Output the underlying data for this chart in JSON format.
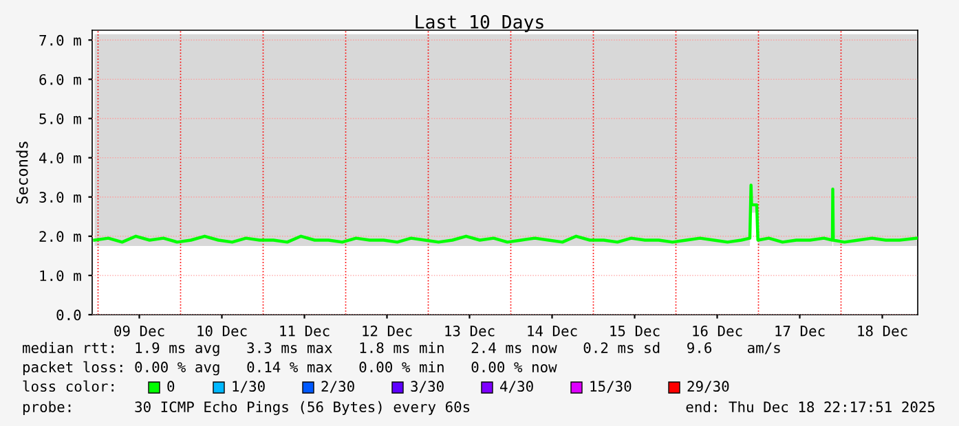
{
  "chart_data": {
    "type": "line",
    "title": "Last 10 Days",
    "ylabel": "Seconds",
    "xlim": [
      "2025-12-08T22:18",
      "2025-12-18T22:18"
    ],
    "xticks": [
      {
        "value": "2025-12-09T12:00",
        "label": "09 Dec"
      },
      {
        "value": "2025-12-10T12:00",
        "label": "10 Dec"
      },
      {
        "value": "2025-12-11T12:00",
        "label": "11 Dec"
      },
      {
        "value": "2025-12-12T12:00",
        "label": "12 Dec"
      },
      {
        "value": "2025-12-13T12:00",
        "label": "13 Dec"
      },
      {
        "value": "2025-12-14T12:00",
        "label": "14 Dec"
      },
      {
        "value": "2025-12-15T12:00",
        "label": "15 Dec"
      },
      {
        "value": "2025-12-16T12:00",
        "label": "16 Dec"
      },
      {
        "value": "2025-12-17T12:00",
        "label": "17 Dec"
      },
      {
        "value": "2025-12-18T12:00",
        "label": "18 Dec"
      }
    ],
    "ylim": [
      0,
      7.25
    ],
    "yticks": [
      {
        "value": 0,
        "label": "0.0"
      },
      {
        "value": 1,
        "label": "1.0 m"
      },
      {
        "value": 2,
        "label": "2.0 m"
      },
      {
        "value": 3,
        "label": "3.0 m"
      },
      {
        "value": 4,
        "label": "4.0 m"
      },
      {
        "value": 5,
        "label": "5.0 m"
      },
      {
        "value": 6,
        "label": "6.0 m"
      },
      {
        "value": 7,
        "label": "7.0 m"
      }
    ],
    "grid": "y",
    "legend": "bottom",
    "marker": "none",
    "line_style": "solid",
    "ref_lines": [
      {
        "axis": "x",
        "value": "2025-12-09T00:00",
        "color": "#ff0000",
        "line_style": "dotted"
      },
      {
        "axis": "x",
        "value": "2025-12-10T00:00",
        "color": "#ff0000",
        "line_style": "dotted"
      },
      {
        "axis": "x",
        "value": "2025-12-11T00:00",
        "color": "#ff0000",
        "line_style": "dotted"
      },
      {
        "axis": "x",
        "value": "2025-12-12T00:00",
        "color": "#ff0000",
        "line_style": "dotted"
      },
      {
        "axis": "x",
        "value": "2025-12-13T00:00",
        "color": "#ff0000",
        "line_style": "dotted"
      },
      {
        "axis": "x",
        "value": "2025-12-14T00:00",
        "color": "#ff0000",
        "line_style": "dotted"
      },
      {
        "axis": "x",
        "value": "2025-12-15T00:00",
        "color": "#ff0000",
        "line_style": "dotted"
      },
      {
        "axis": "x",
        "value": "2025-12-16T00:00",
        "color": "#ff0000",
        "line_style": "dotted"
      },
      {
        "axis": "x",
        "value": "2025-12-17T00:00",
        "color": "#ff0000",
        "line_style": "dotted"
      },
      {
        "axis": "x",
        "value": "2025-12-18T00:00",
        "color": "#ff0000",
        "line_style": "dotted"
      }
    ],
    "series": [
      {
        "name": "0",
        "color": "#00ff00",
        "x": [
          "2025-12-08T23:00",
          "2025-12-09T03:00",
          "2025-12-09T07:00",
          "2025-12-09T11:00",
          "2025-12-09T15:00",
          "2025-12-09T19:00",
          "2025-12-09T23:00",
          "2025-12-10T03:00",
          "2025-12-10T07:00",
          "2025-12-10T11:00",
          "2025-12-10T15:00",
          "2025-12-10T19:00",
          "2025-12-10T23:00",
          "2025-12-11T03:00",
          "2025-12-11T07:00",
          "2025-12-11T11:00",
          "2025-12-11T15:00",
          "2025-12-11T19:00",
          "2025-12-11T23:00",
          "2025-12-12T03:00",
          "2025-12-12T07:00",
          "2025-12-12T11:00",
          "2025-12-12T15:00",
          "2025-12-12T19:00",
          "2025-12-12T23:00",
          "2025-12-13T03:00",
          "2025-12-13T07:00",
          "2025-12-13T11:00",
          "2025-12-13T15:00",
          "2025-12-13T19:00",
          "2025-12-13T23:00",
          "2025-12-14T03:00",
          "2025-12-14T07:00",
          "2025-12-14T11:00",
          "2025-12-14T15:00",
          "2025-12-14T19:00",
          "2025-12-14T23:00",
          "2025-12-15T03:00",
          "2025-12-15T07:00",
          "2025-12-15T11:00",
          "2025-12-15T15:00",
          "2025-12-15T19:00",
          "2025-12-15T23:00",
          "2025-12-16T03:00",
          "2025-12-16T07:00",
          "2025-12-16T11:00",
          "2025-12-16T15:00",
          "2025-12-16T19:00",
          "2025-12-16T21:30",
          "2025-12-16T21:50",
          "2025-12-16T22:00",
          "2025-12-16T23:30",
          "2025-12-16T23:50",
          "2025-12-17T03:00",
          "2025-12-17T07:00",
          "2025-12-17T11:00",
          "2025-12-17T15:00",
          "2025-12-17T19:00",
          "2025-12-17T21:30",
          "2025-12-17T21:36",
          "2025-12-17T21:45",
          "2025-12-18T01:00",
          "2025-12-18T05:00",
          "2025-12-18T09:00",
          "2025-12-18T13:00",
          "2025-12-18T17:00",
          "2025-12-18T22:00"
        ],
        "values": [
          1.9,
          1.95,
          1.85,
          2.0,
          1.9,
          1.95,
          1.85,
          1.9,
          2.0,
          1.9,
          1.85,
          1.95,
          1.9,
          1.9,
          1.85,
          2.0,
          1.9,
          1.9,
          1.85,
          1.95,
          1.9,
          1.9,
          1.85,
          1.95,
          1.9,
          1.85,
          1.9,
          2.0,
          1.9,
          1.95,
          1.85,
          1.9,
          1.95,
          1.9,
          1.85,
          2.0,
          1.9,
          1.9,
          1.85,
          1.95,
          1.9,
          1.9,
          1.85,
          1.9,
          1.95,
          1.9,
          1.85,
          1.9,
          1.95,
          3.3,
          2.8,
          2.8,
          1.9,
          1.95,
          1.85,
          1.9,
          1.9,
          1.95,
          1.9,
          3.2,
          1.9,
          1.85,
          1.9,
          1.95,
          1.9,
          1.9,
          1.95
        ],
        "lower": [
          1.75,
          1.75,
          1.75,
          1.75,
          1.75,
          1.75,
          1.75,
          1.75,
          1.75,
          1.75,
          1.75,
          1.75,
          1.75,
          1.75,
          1.75,
          1.75,
          1.75,
          1.75,
          1.75,
          1.75,
          1.75,
          1.75,
          1.75,
          1.75,
          1.75,
          1.75,
          1.75,
          1.75,
          1.75,
          1.75,
          1.75,
          1.75,
          1.75,
          1.75,
          1.75,
          1.75,
          1.75,
          1.75,
          1.75,
          1.75,
          1.75,
          1.75,
          1.75,
          1.75,
          1.75,
          1.75,
          1.75,
          1.75,
          1.75,
          2.5,
          2.6,
          2.6,
          1.75,
          1.75,
          1.75,
          1.75,
          1.75,
          1.75,
          1.75,
          2.0,
          1.75,
          1.75,
          1.75,
          1.75,
          1.75,
          1.75,
          1.75
        ],
        "upper": [
          7.15,
          7.15,
          7.15,
          7.15,
          7.15,
          7.15,
          7.15,
          7.15,
          7.15,
          7.15,
          7.15,
          7.15,
          7.15,
          7.15,
          7.15,
          7.15,
          7.15,
          7.15,
          7.15,
          7.15,
          7.15,
          7.15,
          7.15,
          7.15,
          7.15,
          7.15,
          7.15,
          7.15,
          7.15,
          7.15,
          7.15,
          7.15,
          7.15,
          7.15,
          7.15,
          7.15,
          7.15,
          7.15,
          7.15,
          7.15,
          7.15,
          7.15,
          7.15,
          7.15,
          7.15,
          7.15,
          7.15,
          7.15,
          7.15,
          7.15,
          7.15,
          7.15,
          7.15,
          7.15,
          7.15,
          7.15,
          7.15,
          7.15,
          7.15,
          7.15,
          7.15,
          7.15,
          7.15,
          7.15,
          7.15,
          7.15,
          7.15
        ]
      },
      {
        "name": "1/30",
        "color": "#00b8ff"
      },
      {
        "name": "2/30",
        "color": "#0059ff"
      },
      {
        "name": "3/30",
        "color": "#5e00ff"
      },
      {
        "name": "4/30",
        "color": "#7e00ff"
      },
      {
        "name": "15/30",
        "color": "#dd00ff"
      },
      {
        "name": "29/30",
        "color": "#ff0000"
      }
    ],
    "annotations": [
      "median rtt:  1.9 ms avg   3.3 ms max   1.8 ms min   2.4 ms now   0.2 ms sd   9.6    am/s",
      "packet loss: 0.00 % avg   0.14 % max   0.00 % min   0.00 % now",
      "loss color:",
      "probe:       30 ICMP Echo Pings (56 Bytes) every 60s",
      "end: Thu Dec 18 22:17:51 2025"
    ]
  }
}
